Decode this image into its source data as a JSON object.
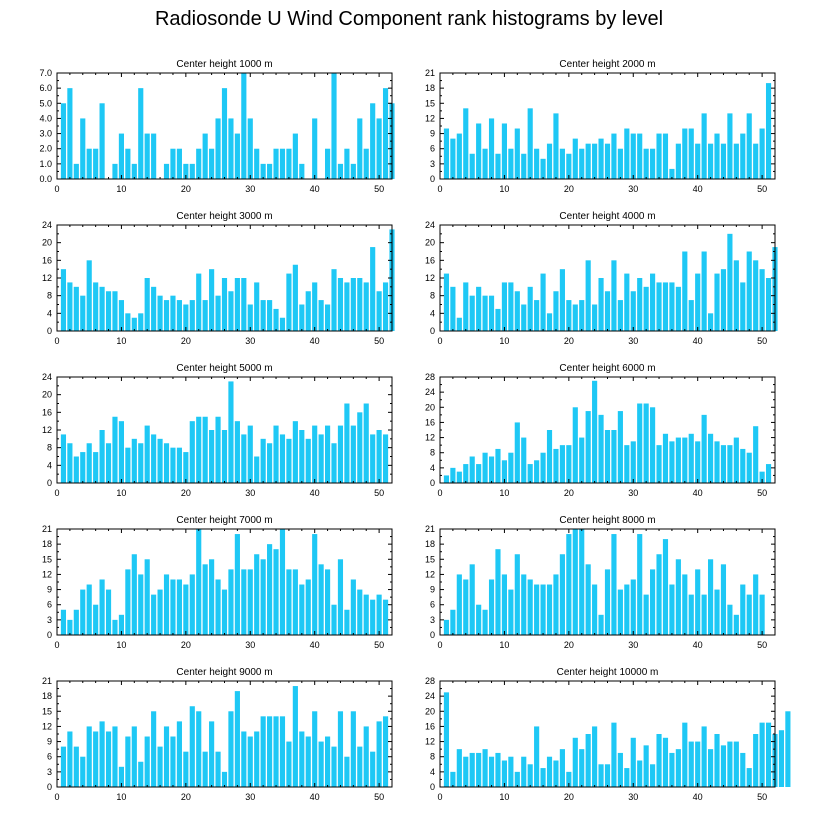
{
  "figure": {
    "title": "Radiosonde U Wind Component rank histograms by level",
    "bar_color": "#1EC8F5",
    "axis_color": "#000000"
  },
  "chart_data": [
    {
      "type": "bar",
      "title": "Center height 1000 m",
      "xlim": [
        0,
        52
      ],
      "xticks": [
        0,
        10,
        20,
        30,
        40,
        50
      ],
      "ylim": [
        0,
        7
      ],
      "yticks": [
        0,
        1,
        2,
        3,
        4,
        5,
        6,
        7
      ],
      "ytick_labels": [
        "0.0",
        "1.0",
        "2.0",
        "3.0",
        "4.0",
        "5.0",
        "6.0",
        "7.0"
      ],
      "values": [
        5,
        6,
        1,
        4,
        2,
        2,
        5,
        0,
        1,
        3,
        2,
        1,
        6,
        3,
        3,
        0,
        1,
        2,
        2,
        1,
        1,
        2,
        3,
        2,
        4,
        6,
        4,
        3,
        7,
        4,
        2,
        1,
        1,
        2,
        2,
        2,
        3,
        1,
        0,
        4,
        0,
        2,
        7,
        1,
        2,
        1,
        4,
        2,
        5,
        4,
        6,
        5
      ]
    },
    {
      "type": "bar",
      "title": "Center height 2000 m",
      "xlim": [
        0,
        52
      ],
      "xticks": [
        0,
        10,
        20,
        30,
        40,
        50
      ],
      "ylim": [
        0,
        21
      ],
      "yticks": [
        0,
        3,
        6,
        9,
        12,
        15,
        18,
        21
      ],
      "ytick_labels": [
        "0",
        "3",
        "6",
        "9",
        "12",
        "15",
        "18",
        "21"
      ],
      "values": [
        10,
        8,
        9,
        14,
        5,
        11,
        6,
        12,
        5,
        11,
        6,
        10,
        5,
        14,
        6,
        4,
        7,
        13,
        6,
        5,
        8,
        6,
        7,
        7,
        8,
        7,
        9,
        6,
        10,
        9,
        9,
        6,
        6,
        9,
        9,
        2,
        7,
        10,
        10,
        7,
        13,
        7,
        9,
        7,
        13,
        7,
        9,
        13,
        7,
        10,
        19
      ]
    },
    {
      "type": "bar",
      "title": "Center height 3000 m",
      "xlim": [
        0,
        52
      ],
      "xticks": [
        0,
        10,
        20,
        30,
        40,
        50
      ],
      "ylim": [
        0,
        24
      ],
      "yticks": [
        0,
        4,
        8,
        12,
        16,
        20,
        24
      ],
      "ytick_labels": [
        "0",
        "4",
        "8",
        "12",
        "16",
        "20",
        "24"
      ],
      "values": [
        14,
        11,
        10,
        8,
        16,
        11,
        10,
        9,
        9,
        7,
        4,
        3,
        4,
        12,
        10,
        8,
        7,
        8,
        7,
        6,
        7,
        13,
        7,
        14,
        8,
        12,
        9,
        12,
        12,
        6,
        11,
        7,
        7,
        5,
        3,
        13,
        15,
        6,
        9,
        11,
        7,
        6,
        14,
        12,
        11,
        12,
        12,
        11,
        19,
        9,
        11,
        23
      ]
    },
    {
      "type": "bar",
      "title": "Center height 4000 m",
      "xlim": [
        0,
        52
      ],
      "xticks": [
        0,
        10,
        20,
        30,
        40,
        50
      ],
      "ylim": [
        0,
        24
      ],
      "yticks": [
        0,
        4,
        8,
        12,
        16,
        20,
        24
      ],
      "ytick_labels": [
        "0",
        "4",
        "8",
        "12",
        "16",
        "20",
        "24"
      ],
      "values": [
        13,
        10,
        3,
        11,
        8,
        10,
        8,
        8,
        5,
        11,
        11,
        9,
        6,
        10,
        7,
        13,
        4,
        9,
        14,
        7,
        6,
        7,
        16,
        6,
        12,
        9,
        16,
        7,
        13,
        9,
        12,
        10,
        13,
        11,
        11,
        11,
        10,
        18,
        7,
        13,
        18,
        4,
        13,
        14,
        22,
        16,
        11,
        18,
        16,
        14,
        12,
        19
      ]
    },
    {
      "type": "bar",
      "title": "Center height 5000 m",
      "xlim": [
        0,
        52
      ],
      "xticks": [
        0,
        10,
        20,
        30,
        40,
        50
      ],
      "ylim": [
        0,
        24
      ],
      "yticks": [
        0,
        4,
        8,
        12,
        16,
        20,
        24
      ],
      "ytick_labels": [
        "0",
        "4",
        "8",
        "12",
        "16",
        "20",
        "24"
      ],
      "values": [
        11,
        9,
        6,
        7,
        9,
        7,
        12,
        9,
        15,
        14,
        8,
        10,
        9,
        13,
        11,
        10,
        9,
        8,
        8,
        7,
        14,
        15,
        15,
        12,
        15,
        12,
        23,
        14,
        11,
        13,
        6,
        10,
        9,
        13,
        11,
        10,
        14,
        12,
        10,
        13,
        11,
        13,
        9,
        13,
        18,
        13,
        16,
        18,
        11,
        12,
        11
      ]
    },
    {
      "type": "bar",
      "title": "Center height 6000 m",
      "xlim": [
        0,
        52
      ],
      "xticks": [
        0,
        10,
        20,
        30,
        40,
        50
      ],
      "ylim": [
        0,
        28
      ],
      "yticks": [
        0,
        4,
        8,
        12,
        16,
        20,
        24,
        28
      ],
      "ytick_labels": [
        "0",
        "4",
        "8",
        "12",
        "16",
        "20",
        "24",
        "28"
      ],
      "values": [
        2,
        4,
        3,
        5,
        7,
        5,
        8,
        7,
        9,
        6,
        8,
        16,
        12,
        5,
        6,
        8,
        14,
        9,
        10,
        10,
        20,
        12,
        19,
        27,
        18,
        14,
        14,
        19,
        10,
        11,
        21,
        21,
        20,
        10,
        13,
        11,
        12,
        12,
        13,
        11,
        18,
        13,
        11,
        10,
        10,
        12,
        9,
        8,
        15,
        3,
        5
      ]
    },
    {
      "type": "bar",
      "title": "Center height 7000 m",
      "xlim": [
        0,
        52
      ],
      "xticks": [
        0,
        10,
        20,
        30,
        40,
        50
      ],
      "ylim": [
        0,
        21
      ],
      "yticks": [
        0,
        3,
        6,
        9,
        12,
        15,
        18,
        21
      ],
      "ytick_labels": [
        "0",
        "3",
        "6",
        "9",
        "12",
        "15",
        "18",
        "21"
      ],
      "values": [
        5,
        3,
        5,
        9,
        10,
        6,
        11,
        9,
        3,
        4,
        13,
        16,
        12,
        15,
        8,
        9,
        12,
        11,
        11,
        10,
        12,
        21,
        14,
        15,
        11,
        9,
        13,
        20,
        13,
        13,
        16,
        15,
        18,
        17,
        21,
        13,
        13,
        10,
        11,
        20,
        14,
        13,
        6,
        15,
        5,
        11,
        9,
        8,
        7,
        8,
        7
      ]
    },
    {
      "type": "bar",
      "title": "Center height 8000 m",
      "xlim": [
        0,
        52
      ],
      "xticks": [
        0,
        10,
        20,
        30,
        40,
        50
      ],
      "ylim": [
        0,
        21
      ],
      "yticks": [
        0,
        3,
        6,
        9,
        12,
        15,
        18,
        21
      ],
      "ytick_labels": [
        "0",
        "3",
        "6",
        "9",
        "12",
        "15",
        "18",
        "21"
      ],
      "values": [
        3,
        5,
        12,
        11,
        14,
        6,
        5,
        11,
        17,
        12,
        9,
        16,
        12,
        11,
        10,
        10,
        10,
        12,
        16,
        20,
        21,
        21,
        14,
        10,
        4,
        13,
        20,
        9,
        10,
        11,
        20,
        8,
        13,
        16,
        19,
        10,
        15,
        12,
        8,
        13,
        8,
        15,
        9,
        14,
        6,
        4,
        10,
        8,
        12,
        8
      ]
    },
    {
      "type": "bar",
      "title": "Center height 9000 m",
      "xlim": [
        0,
        52
      ],
      "xticks": [
        0,
        10,
        20,
        30,
        40,
        50
      ],
      "ylim": [
        0,
        21
      ],
      "yticks": [
        0,
        3,
        6,
        9,
        12,
        15,
        18,
        21
      ],
      "ytick_labels": [
        "0",
        "3",
        "6",
        "9",
        "12",
        "15",
        "18",
        "21"
      ],
      "values": [
        8,
        11,
        8,
        6,
        12,
        11,
        13,
        11,
        12,
        4,
        10,
        12,
        5,
        10,
        15,
        8,
        12,
        10,
        13,
        7,
        16,
        15,
        7,
        13,
        7,
        3,
        15,
        19,
        11,
        10,
        11,
        14,
        14,
        14,
        14,
        9,
        20,
        11,
        10,
        15,
        9,
        10,
        8,
        15,
        6,
        15,
        8,
        12,
        7,
        13,
        14
      ]
    },
    {
      "type": "bar",
      "title": "Center height 10000 m",
      "xlim": [
        0,
        52
      ],
      "xticks": [
        0,
        10,
        20,
        30,
        40,
        50
      ],
      "ylim": [
        0,
        28
      ],
      "yticks": [
        0,
        4,
        8,
        12,
        16,
        20,
        24,
        28
      ],
      "ytick_labels": [
        "0",
        "4",
        "8",
        "12",
        "16",
        "20",
        "24",
        "28"
      ],
      "values": [
        25,
        4,
        10,
        8,
        9,
        9,
        10,
        8,
        9,
        7,
        8,
        4,
        8,
        6,
        16,
        5,
        8,
        7,
        10,
        4,
        13,
        10,
        14,
        16,
        6,
        6,
        17,
        9,
        5,
        13,
        7,
        11,
        6,
        14,
        13,
        9,
        10,
        17,
        12,
        12,
        16,
        10,
        14,
        11,
        12,
        12,
        9,
        5,
        14,
        17,
        17,
        14,
        15,
        20
      ]
    }
  ]
}
